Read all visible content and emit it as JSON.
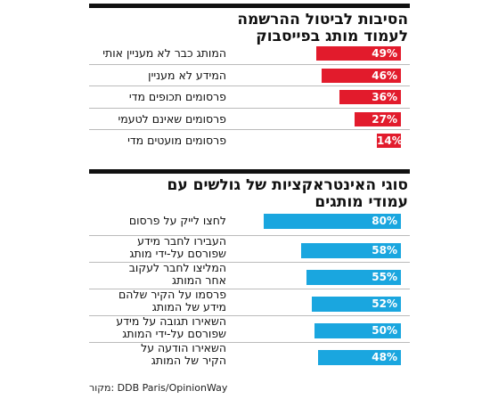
{
  "colors": {
    "section1_bar": "#e21b2c",
    "section2_bar": "#1aa6df"
  },
  "source": "מקור: DDB Paris/OpinionWay",
  "chart_data": [
    {
      "type": "bar",
      "orientation": "horizontal",
      "title_lines": [
        "הסיבות לביטול ההרשמה",
        "לעמוד מותג בפייסבוק"
      ],
      "unit": "%",
      "xlim": [
        0,
        100
      ],
      "categories": [
        [
          "המותג כבר לא מעניין אותי"
        ],
        [
          "המידע לא מעניין"
        ],
        [
          "פרסומים תכופים מדי"
        ],
        [
          "פרסומים שאינם לטעמי"
        ],
        [
          "פרסומים מועטים מדי"
        ]
      ],
      "values": [
        49,
        46,
        36,
        27,
        14
      ],
      "labels": [
        "49%",
        "46%",
        "36%",
        "27%",
        "14%"
      ]
    },
    {
      "type": "bar",
      "orientation": "horizontal",
      "title_lines": [
        "סוגי האינטראקציות של גולשים עם",
        "עמודי מותגים"
      ],
      "unit": "%",
      "xlim": [
        0,
        100
      ],
      "categories": [
        [
          "לחצו לייק על פרסום"
        ],
        [
          "העבירו לחבר מידע",
          "שפורסם על-ידי מותג"
        ],
        [
          "המליצו לחבר לעקוב",
          "אחר המותג"
        ],
        [
          "פרסמו על הקיר שלהם",
          "מידע של המותג"
        ],
        [
          "השאירו תגובה על מידע",
          "שפורסם על-ידי המותג"
        ],
        [
          "השאירו הודעה על",
          "הקיר של המותג"
        ]
      ],
      "values": [
        80,
        58,
        55,
        52,
        50,
        48
      ],
      "labels": [
        "80%",
        "58%",
        "55%",
        "52%",
        "50%",
        "48%"
      ]
    }
  ]
}
